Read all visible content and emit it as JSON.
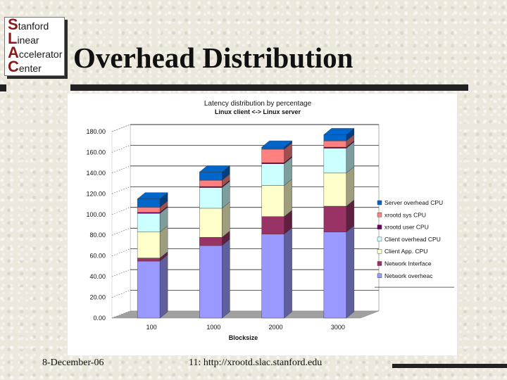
{
  "logo": {
    "lines": [
      {
        "cap": "S",
        "rest": "tanford"
      },
      {
        "cap": "L",
        "rest": "inear"
      },
      {
        "cap": "A",
        "rest": "ccelerator"
      },
      {
        "cap": "C",
        "rest": "enter"
      }
    ]
  },
  "slide": {
    "title": "Overhead Distribution",
    "footer_date": "8-December-06",
    "footer_page": "11: http://xrootd.slac.stanford.edu"
  },
  "chart_data": {
    "type": "bar",
    "stacked": true,
    "three_d": true,
    "title": "Latency distribution by percentage",
    "subtitle": "Linux client <-> Linux server",
    "xlabel": "Blocksize",
    "ylabel": "",
    "categories": [
      "100",
      "1000",
      "2000",
      "3000"
    ],
    "ylim": [
      0,
      180
    ],
    "yticks": [
      "0.00",
      "20.00",
      "40.00",
      "60.00",
      "80.00",
      "100.00",
      "120.00",
      "140.00",
      "160.00",
      "180.00"
    ],
    "grid": true,
    "legend_position": "right",
    "series": [
      {
        "name": "Network overheac",
        "color": "#9999ff",
        "values": [
          55,
          70,
          81,
          83
        ]
      },
      {
        "name": "Network Interface",
        "color": "#993366",
        "values": [
          3,
          8,
          17,
          25
        ]
      },
      {
        "name": "Client App. CPU",
        "color": "#ffffcc",
        "values": [
          25,
          28,
          30,
          32
        ]
      },
      {
        "name": "Client overhead CPU",
        "color": "#ccffff",
        "values": [
          18,
          20,
          21,
          24
        ]
      },
      {
        "name": "xrootd user CPU",
        "color": "#660066",
        "values": [
          1,
          1,
          1,
          1
        ]
      },
      {
        "name": "xrootd sys CPU",
        "color": "#ff8080",
        "values": [
          5,
          6,
          13,
          6
        ]
      },
      {
        "name": "Server overhead CPU",
        "color": "#0066cc",
        "values": [
          8,
          8,
          2,
          6
        ]
      }
    ]
  }
}
